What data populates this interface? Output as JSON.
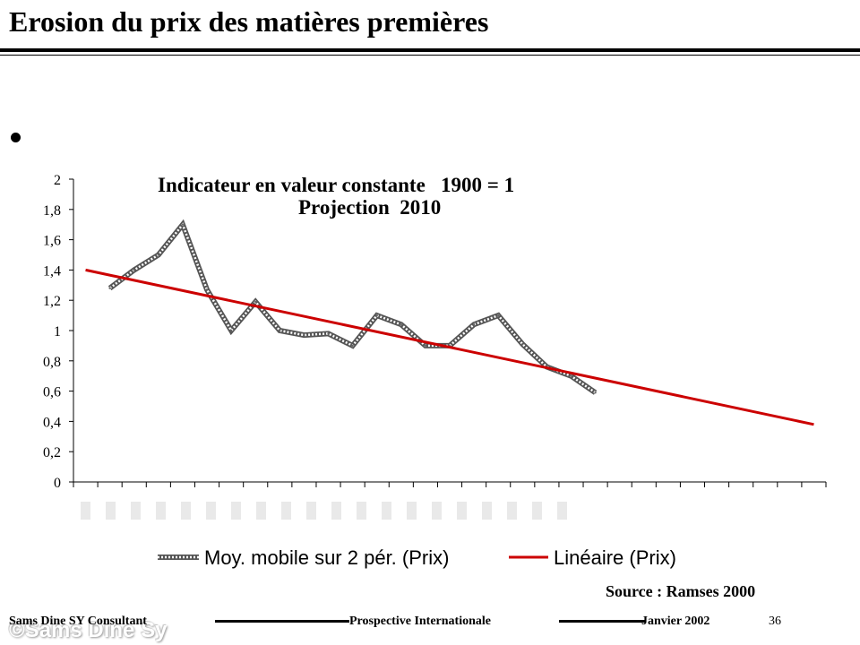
{
  "slide": {
    "title": "Erosion du prix des matières premières",
    "source": "Source : Ramses 2000",
    "footer": {
      "author": "Sams Dine SY Consultant",
      "topic": "Prospective Internationale",
      "date": "Janvier 2002",
      "page": "36",
      "watermark": "©Sams Dine Sy"
    }
  },
  "chart_data": {
    "type": "line",
    "title": "Indicateur en valeur constante   1900 = 1",
    "subtitle": "Projection  2010",
    "xlabel": "",
    "ylabel": "",
    "ylim": [
      0,
      2
    ],
    "yticks": [
      "0",
      "0,2",
      "0,4",
      "0,6",
      "0,8",
      "1",
      "1,2",
      "1,4",
      "1,6",
      "1,8",
      "2"
    ],
    "x_count": 31,
    "grid": false,
    "legend_position": "bottom",
    "series": [
      {
        "name": "Moy. mobile sur 2 pér. (Prix)",
        "x": [
          1,
          2,
          3,
          4,
          5,
          6,
          7,
          8,
          9,
          10,
          11,
          12,
          13,
          14,
          15,
          16,
          17,
          18,
          19,
          20,
          21
        ],
        "values": [
          1.28,
          1.4,
          1.5,
          1.7,
          1.27,
          1.0,
          1.19,
          1.0,
          0.97,
          0.98,
          0.9,
          1.1,
          1.04,
          0.9,
          0.9,
          1.04,
          1.1,
          0.91,
          0.76,
          0.7,
          0.59
        ],
        "color": "#888888"
      },
      {
        "name": "Linéaire (Prix)",
        "x": [
          0,
          30
        ],
        "values": [
          1.4,
          0.38
        ],
        "color": "#cc0000"
      }
    ]
  }
}
